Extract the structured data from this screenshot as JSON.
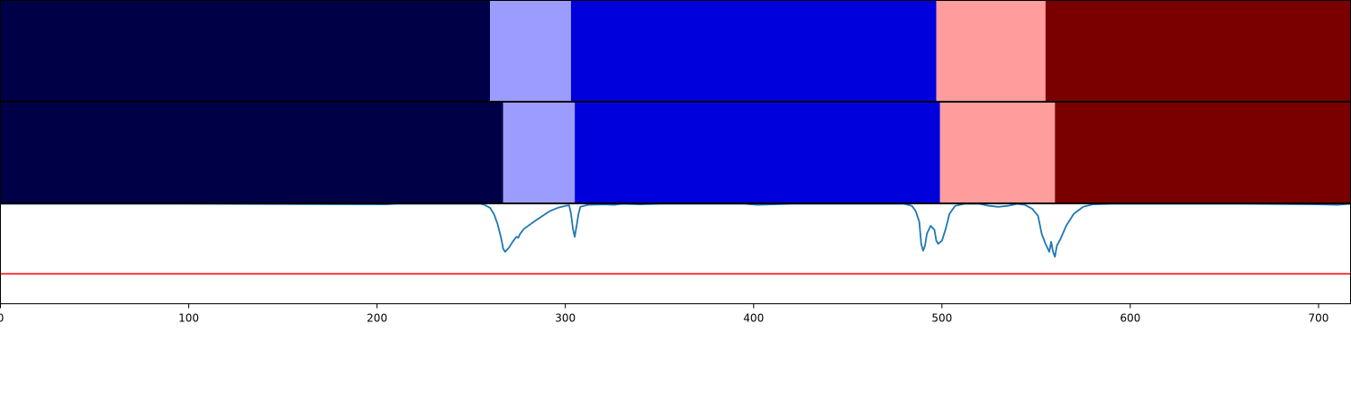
{
  "chart_data": {
    "type": "segmentation-timeline",
    "xlim": [
      0,
      717
    ],
    "x_ticks": [
      {
        "value": 0,
        "label": "0"
      },
      {
        "value": 100,
        "label": "100"
      },
      {
        "value": 200,
        "label": "200"
      },
      {
        "value": 300,
        "label": "300"
      },
      {
        "value": 400,
        "label": "400"
      },
      {
        "value": 500,
        "label": "500"
      },
      {
        "value": 600,
        "label": "600"
      },
      {
        "value": 700,
        "label": "700"
      }
    ],
    "segment_rows": [
      {
        "segments": [
          {
            "start": 0,
            "end": 260,
            "color": "#000046"
          },
          {
            "start": 260,
            "end": 303,
            "color": "#9c9cff"
          },
          {
            "start": 303,
            "end": 497,
            "color": "#0000dc"
          },
          {
            "start": 497,
            "end": 555,
            "color": "#ff9c9c"
          },
          {
            "start": 555,
            "end": 717,
            "color": "#7a0000"
          }
        ]
      },
      {
        "segments": [
          {
            "start": 0,
            "end": 267,
            "color": "#000046"
          },
          {
            "start": 267,
            "end": 305,
            "color": "#9c9cff"
          },
          {
            "start": 305,
            "end": 499,
            "color": "#0000dc"
          },
          {
            "start": 499,
            "end": 560,
            "color": "#ff9c9c"
          },
          {
            "start": 560,
            "end": 717,
            "color": "#7a0000"
          }
        ]
      }
    ],
    "signal": {
      "ylim": [
        0,
        1
      ],
      "line_color": "#1f77b4",
      "threshold": 0.3,
      "threshold_color": "#ff0000",
      "points": [
        [
          0,
          1.0
        ],
        [
          100,
          1.0
        ],
        [
          205,
          0.995
        ],
        [
          210,
          1.0
        ],
        [
          255,
          1.0
        ],
        [
          257,
          0.99
        ],
        [
          260,
          0.96
        ],
        [
          262,
          0.9
        ],
        [
          264,
          0.8
        ],
        [
          266,
          0.65
        ],
        [
          267,
          0.55
        ],
        [
          268,
          0.52
        ],
        [
          270,
          0.56
        ],
        [
          272,
          0.62
        ],
        [
          274,
          0.67
        ],
        [
          275,
          0.66
        ],
        [
          276,
          0.7
        ],
        [
          278,
          0.75
        ],
        [
          281,
          0.79
        ],
        [
          284,
          0.83
        ],
        [
          288,
          0.88
        ],
        [
          292,
          0.93
        ],
        [
          296,
          0.96
        ],
        [
          300,
          0.98
        ],
        [
          302,
          0.985
        ],
        [
          303,
          0.9
        ],
        [
          304,
          0.75
        ],
        [
          305,
          0.67
        ],
        [
          306,
          0.78
        ],
        [
          307,
          0.9
        ],
        [
          308,
          0.97
        ],
        [
          312,
          0.99
        ],
        [
          320,
          0.995
        ],
        [
          326,
          0.99
        ],
        [
          330,
          1.0
        ],
        [
          340,
          0.995
        ],
        [
          350,
          1.0
        ],
        [
          395,
          1.0
        ],
        [
          402,
          0.99
        ],
        [
          410,
          0.995
        ],
        [
          420,
          1.0
        ],
        [
          480,
          1.0
        ],
        [
          484,
          0.98
        ],
        [
          486,
          0.93
        ],
        [
          488,
          0.82
        ],
        [
          489,
          0.6
        ],
        [
          490,
          0.53
        ],
        [
          491,
          0.58
        ],
        [
          492,
          0.7
        ],
        [
          494,
          0.78
        ],
        [
          496,
          0.74
        ],
        [
          497,
          0.63
        ],
        [
          498,
          0.6
        ],
        [
          500,
          0.63
        ],
        [
          502,
          0.75
        ],
        [
          504,
          0.9
        ],
        [
          507,
          0.98
        ],
        [
          512,
          1.0
        ],
        [
          520,
          1.0
        ],
        [
          525,
          0.98
        ],
        [
          530,
          0.97
        ],
        [
          535,
          0.98
        ],
        [
          540,
          1.0
        ],
        [
          544,
          0.99
        ],
        [
          548,
          0.95
        ],
        [
          551,
          0.88
        ],
        [
          553,
          0.7
        ],
        [
          555,
          0.6
        ],
        [
          557,
          0.52
        ],
        [
          558,
          0.62
        ],
        [
          559,
          0.52
        ],
        [
          560,
          0.47
        ],
        [
          561,
          0.58
        ],
        [
          563,
          0.65
        ],
        [
          566,
          0.78
        ],
        [
          570,
          0.9
        ],
        [
          575,
          0.97
        ],
        [
          580,
          0.995
        ],
        [
          590,
          1.0
        ],
        [
          660,
          1.0
        ],
        [
          700,
          0.995
        ],
        [
          710,
          0.99
        ],
        [
          717,
          1.0
        ]
      ]
    }
  }
}
